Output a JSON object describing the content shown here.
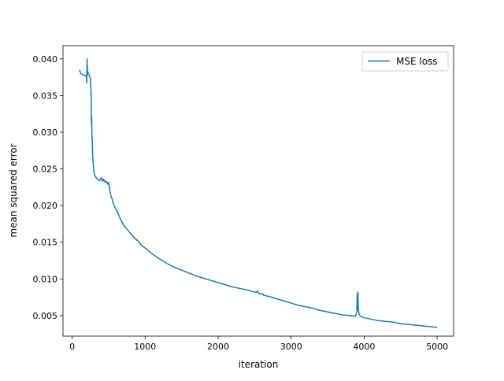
{
  "chart_data": {
    "type": "line",
    "title": "",
    "xlabel": "iteration",
    "ylabel": "mean squared error",
    "xlim": [
      -125,
      5225
    ],
    "ylim": [
      0.0022,
      0.0418
    ],
    "xticks": [
      0,
      1000,
      2000,
      3000,
      4000,
      5000
    ],
    "xtick_labels": [
      "0",
      "1000",
      "2000",
      "3000",
      "4000",
      "5000"
    ],
    "yticks": [
      0.005,
      0.01,
      0.015,
      0.02,
      0.025,
      0.03,
      0.035,
      0.04
    ],
    "ytick_labels": [
      "0.005",
      "0.010",
      "0.015",
      "0.020",
      "0.025",
      "0.030",
      "0.035",
      "0.040"
    ],
    "grid": false,
    "legend_position": "top-right",
    "series": [
      {
        "name": "MSE loss",
        "color": "#1f77b4",
        "x": [
          100,
          120,
          150,
          180,
          195,
          200,
          205,
          210,
          215,
          220,
          225,
          240,
          250,
          260,
          262,
          265,
          268,
          270,
          275,
          280,
          290,
          300,
          320,
          350,
          380,
          400,
          420,
          430,
          450,
          470,
          490,
          500,
          510,
          520,
          530,
          550,
          570,
          600,
          620,
          650,
          680,
          700,
          750,
          800,
          850,
          900,
          950,
          1000,
          1100,
          1200,
          1300,
          1400,
          1500,
          1600,
          1700,
          1800,
          1900,
          2000,
          2100,
          2200,
          2300,
          2400,
          2500,
          2530,
          2540,
          2550,
          2600,
          2610,
          2620,
          2700,
          2800,
          2900,
          3000,
          3100,
          3200,
          3300,
          3400,
          3500,
          3600,
          3700,
          3800,
          3880,
          3900,
          3905,
          3910,
          3915,
          3920,
          3930,
          3950,
          4000,
          4100,
          4200,
          4300,
          4400,
          4500,
          4600,
          4700,
          4800,
          4900,
          5000
        ],
        "y": [
          0.0385,
          0.038,
          0.0378,
          0.0377,
          0.0376,
          0.0367,
          0.04,
          0.038,
          0.0383,
          0.0378,
          0.0379,
          0.0377,
          0.0373,
          0.0355,
          0.033,
          0.031,
          0.0322,
          0.03,
          0.029,
          0.027,
          0.0255,
          0.0245,
          0.0239,
          0.0236,
          0.0234,
          0.0238,
          0.0233,
          0.0236,
          0.0232,
          0.0233,
          0.0229,
          0.0232,
          0.0225,
          0.0218,
          0.0214,
          0.0208,
          0.0201,
          0.0195,
          0.0192,
          0.0184,
          0.0178,
          0.0174,
          0.0168,
          0.0162,
          0.0156,
          0.0152,
          0.0146,
          0.0142,
          0.0134,
          0.0127,
          0.0121,
          0.0116,
          0.0112,
          0.0108,
          0.0104,
          0.0101,
          0.0098,
          0.0095,
          0.0092,
          0.0089,
          0.0087,
          0.0085,
          0.0082,
          0.0082,
          0.0084,
          0.0081,
          0.0079,
          0.008,
          0.0078,
          0.0076,
          0.0073,
          0.007,
          0.0067,
          0.0064,
          0.0062,
          0.006,
          0.0057,
          0.0055,
          0.0053,
          0.0051,
          0.005,
          0.0049,
          0.0055,
          0.008,
          0.0058,
          0.0082,
          0.006,
          0.0052,
          0.0049,
          0.0047,
          0.0045,
          0.0043,
          0.0042,
          0.0041,
          0.0039,
          0.0038,
          0.0037,
          0.0036,
          0.0035,
          0.0034
        ]
      }
    ]
  }
}
